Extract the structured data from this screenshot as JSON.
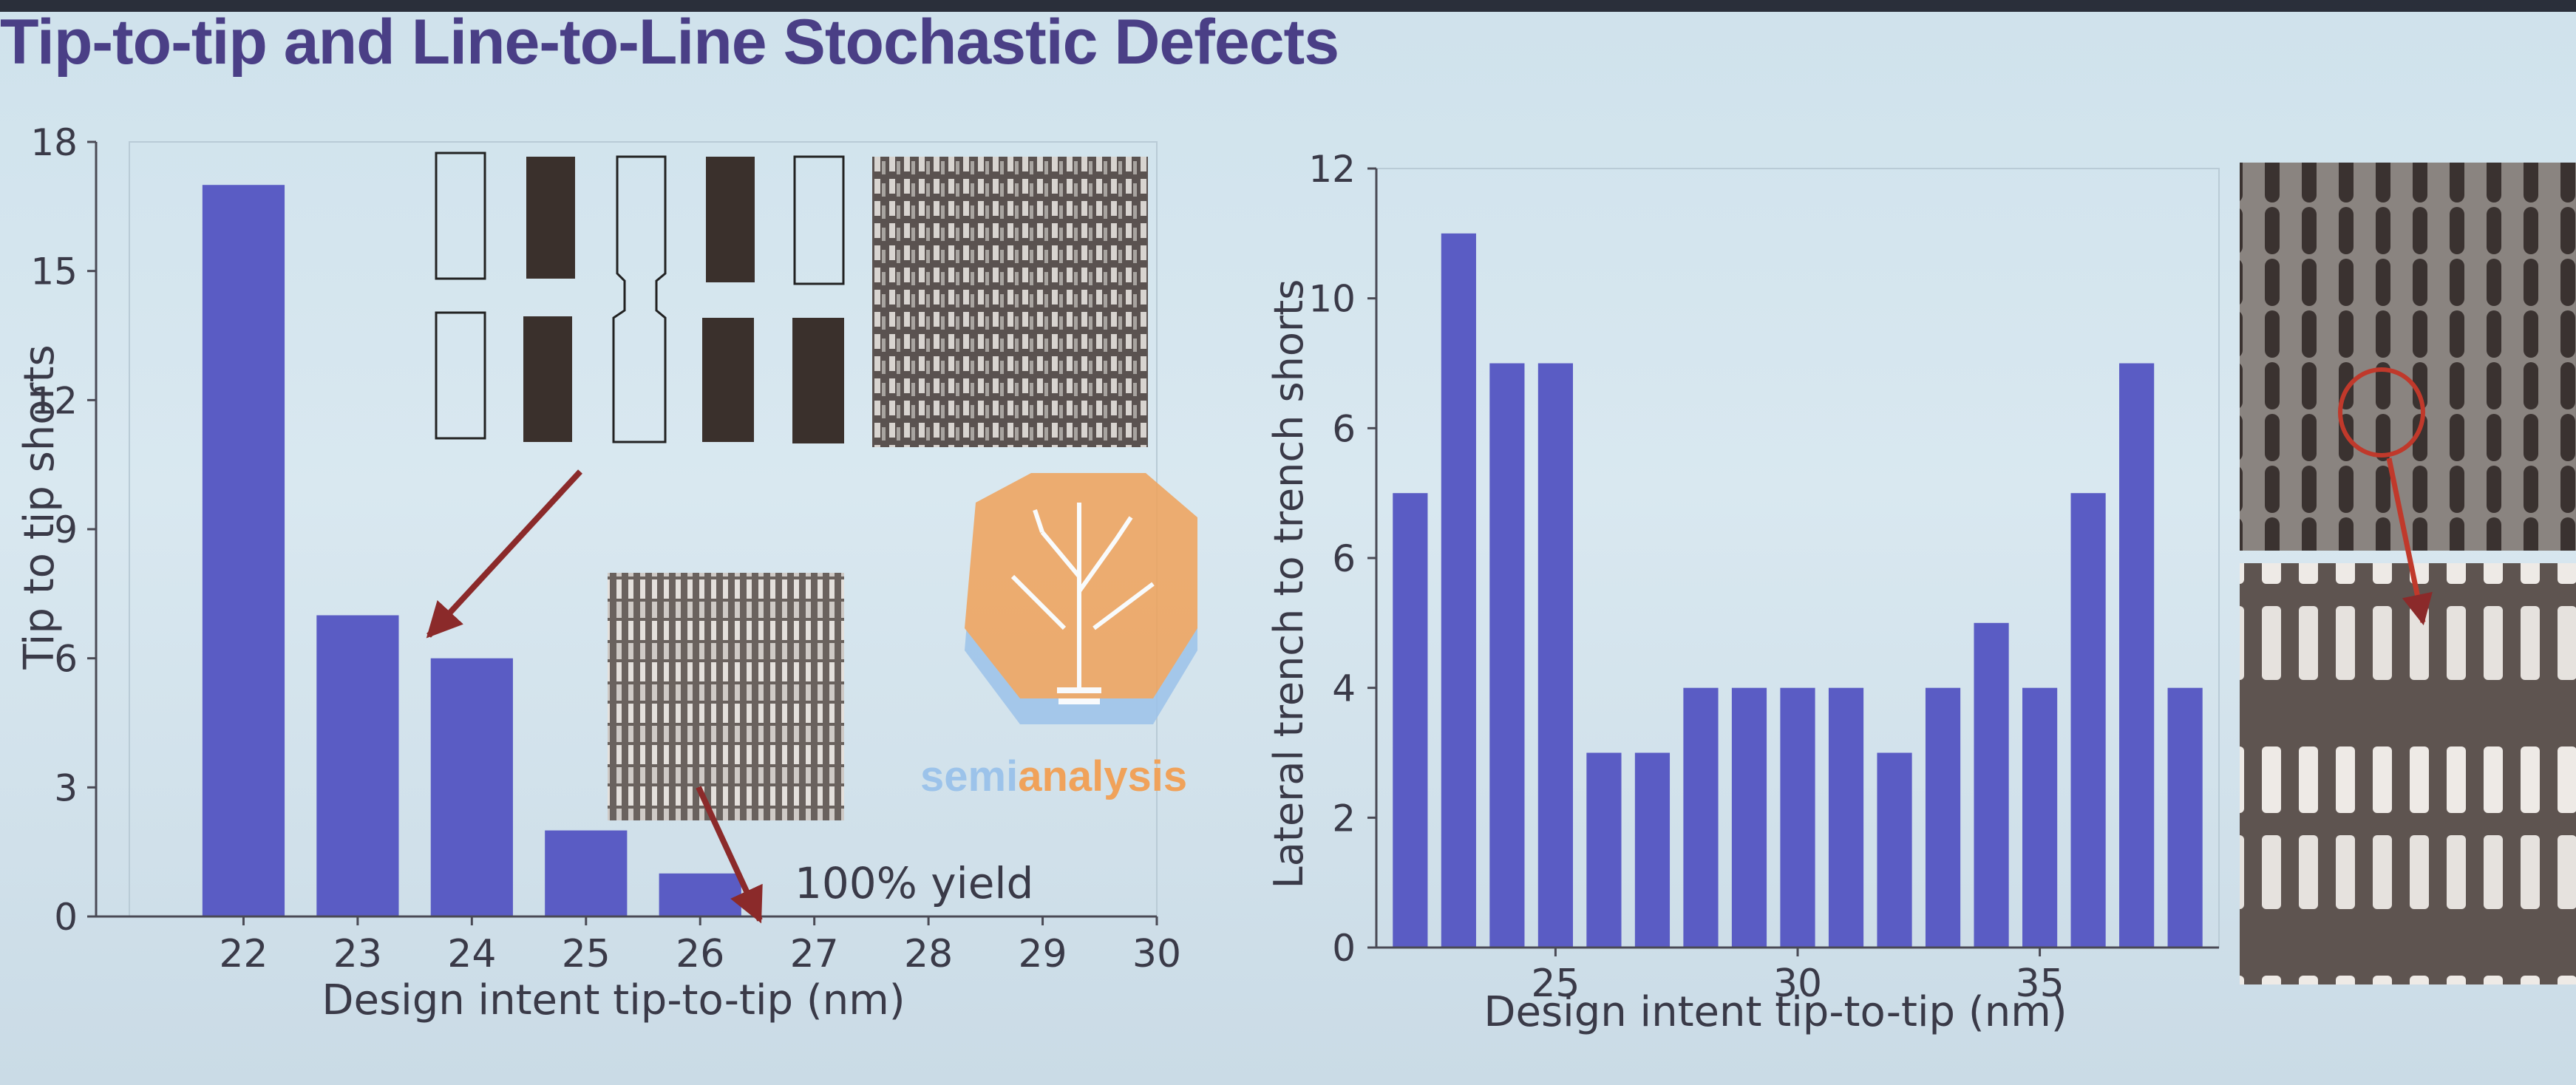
{
  "slide": {
    "title": "Tip-to-tip and Line-to-Line Stochastic Defects"
  },
  "colors": {
    "bar": "#5a5cc4",
    "title": "#4a3f86",
    "axis": "#3a3a48",
    "arrow": "#8b2a2a",
    "watermark": "#f0a25a",
    "watermark_blue": "#9cc3ea"
  },
  "watermark": {
    "brand": "semianalysis",
    "part1": "semi",
    "part2": "analysis"
  },
  "annotations": {
    "yield_label": "100% yield"
  },
  "chart_data": [
    {
      "type": "bar",
      "x": [
        22,
        23,
        24,
        25,
        26
      ],
      "values": [
        17,
        7,
        6,
        2,
        1
      ],
      "xticks": [
        "22",
        "23",
        "24",
        "25",
        "26",
        "27",
        "28",
        "29",
        "30"
      ],
      "yticks": [
        "0",
        "3",
        "6",
        "9",
        "12",
        "15",
        "18"
      ],
      "xlabel": "Design intent tip-to-tip (nm)",
      "ylabel": "Tip to tip shorts",
      "xlim": [
        21,
        30
      ],
      "ylim": [
        0,
        18
      ],
      "grid": false
    },
    {
      "type": "bar",
      "x": [
        22,
        23,
        24,
        25,
        26,
        27,
        28,
        29,
        30,
        31,
        32,
        33,
        34,
        35,
        36,
        37,
        38
      ],
      "values": [
        7,
        11,
        9,
        9,
        3,
        3,
        4,
        4,
        4,
        4,
        3,
        4,
        5,
        4,
        7,
        9,
        4
      ],
      "xticks": [
        "25",
        "30",
        "35"
      ],
      "yticks": [
        "0",
        "2",
        "4",
        "6",
        "8",
        "10",
        "12"
      ],
      "ytick_labels_shown": [
        "0",
        "2",
        "4",
        "6",
        "6",
        "10",
        "12"
      ],
      "xlabel": "Design intent tip-to-tip (nm)",
      "ylabel": "Lateral trench to trench shorts",
      "xlim": [
        21.3,
        38.7
      ],
      "ylim": [
        0,
        12
      ],
      "grid": false
    }
  ]
}
